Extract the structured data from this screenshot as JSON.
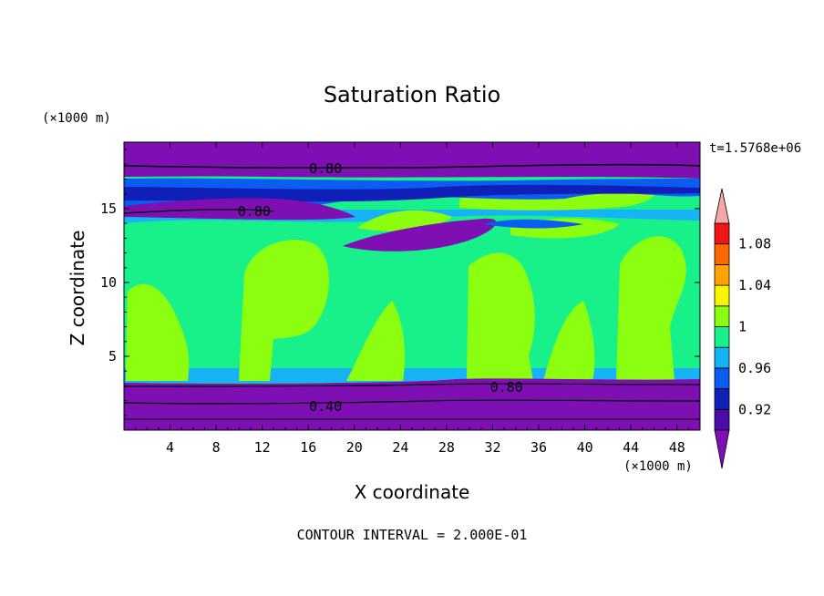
{
  "chart_data": {
    "type": "heatmap",
    "title": "Saturation Ratio",
    "xlabel": "X coordinate",
    "ylabel": "Z coordinate",
    "x_unit": "(×1000 m)",
    "y_unit": "(×1000 m)",
    "time_label": "t=1.5768e+06",
    "footer": "CONTOUR INTERVAL = 2.000E-01",
    "xlim": [
      0,
      50
    ],
    "ylim": [
      0,
      19.5
    ],
    "x_ticks": [
      4,
      8,
      12,
      16,
      20,
      24,
      28,
      32,
      36,
      40,
      44,
      48
    ],
    "y_ticks": [
      5,
      10,
      15
    ],
    "contour_labels": [
      {
        "text": "0.80",
        "x": 17.5,
        "y": 17.7
      },
      {
        "text": "0.80",
        "x": 11.3,
        "y": 14.8
      },
      {
        "text": "0.80",
        "x": 33.2,
        "y": 2.9
      },
      {
        "text": "0.40",
        "x": 17.5,
        "y": 1.6
      }
    ],
    "colorbar": {
      "tick_labels": [
        "0.92",
        "0.96",
        "1",
        "1.04",
        "1.08"
      ],
      "bins": [
        {
          "range": "< 0.90",
          "color": "#7d0fb3"
        },
        {
          "range": "0.90-0.92",
          "color": "#4b0ba8"
        },
        {
          "range": "0.92-0.94",
          "color": "#0f1fb8"
        },
        {
          "range": "0.94-0.96",
          "color": "#0b5cf0"
        },
        {
          "range": "0.96-0.98",
          "color": "#16b4f4"
        },
        {
          "range": "0.98-1.00",
          "color": "#18f08a"
        },
        {
          "range": "1.00-1.02",
          "color": "#8cff10"
        },
        {
          "range": "1.02-1.04",
          "color": "#f6f600"
        },
        {
          "range": "1.04-1.06",
          "color": "#ffa200"
        },
        {
          "range": "1.06-1.08",
          "color": "#ff6a00"
        },
        {
          "range": "1.08-1.10",
          "color": "#f01414"
        },
        {
          "range": "> 1.10",
          "color": "#f4a8a8"
        }
      ]
    },
    "regions": [
      {
        "level": "dry top layer",
        "z": [
          17.5,
          19.5
        ]
      },
      {
        "level": "near saturation (0.98-1.00)",
        "z": [
          3.5,
          13.5
        ]
      },
      {
        "level": "supersaturated cells (1.00-1.02)",
        "x_centers": [
          3,
          14,
          29,
          43
        ],
        "z_top": 13
      }
    ]
  }
}
